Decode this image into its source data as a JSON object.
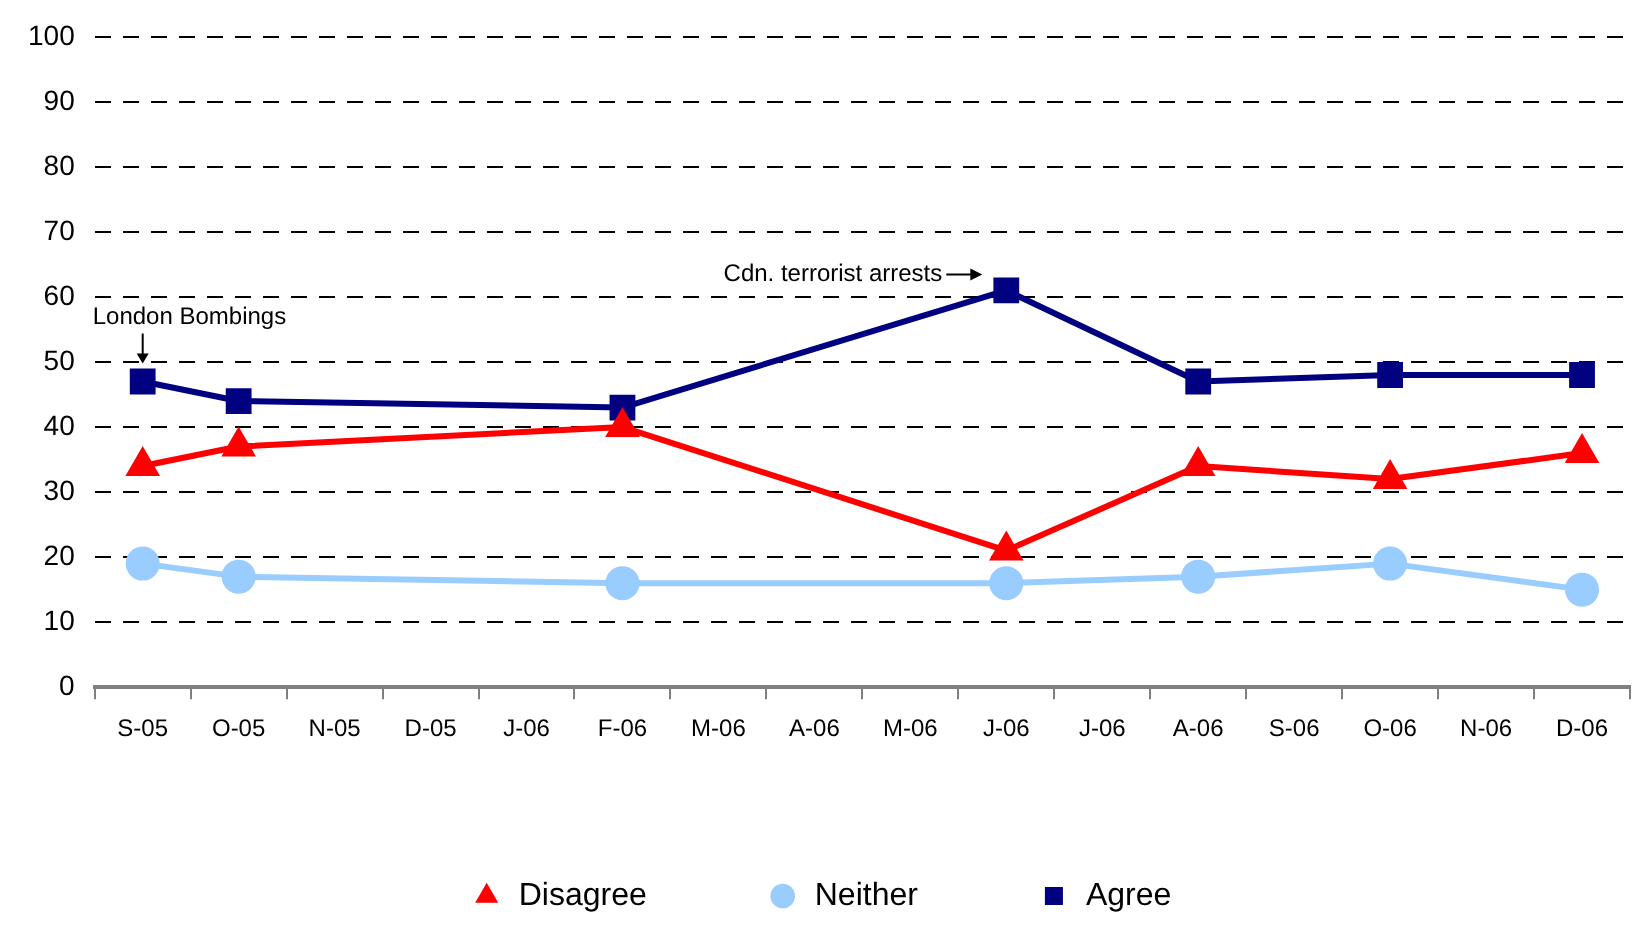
{
  "chart_data": {
    "type": "line",
    "categories": [
      "S-05",
      "O-05",
      "N-05",
      "D-05",
      "J-06",
      "F-06",
      "M-06",
      "A-06",
      "M-06",
      "J-06",
      "J-06",
      "A-06",
      "S-06",
      "O-06",
      "N-06",
      "D-06"
    ],
    "series": [
      {
        "name": "Disagree",
        "color": "#ff0000",
        "marker": "triangle",
        "values": [
          34,
          37,
          null,
          null,
          null,
          40,
          null,
          null,
          null,
          21,
          null,
          34,
          null,
          32,
          null,
          36
        ]
      },
      {
        "name": "Neither",
        "color": "#99ccff",
        "marker": "circle",
        "values": [
          19,
          17,
          null,
          null,
          null,
          16,
          null,
          null,
          null,
          16,
          null,
          17,
          null,
          19,
          null,
          15
        ]
      },
      {
        "name": "Agree",
        "color": "#000080",
        "marker": "square",
        "values": [
          47,
          44,
          null,
          null,
          null,
          43,
          null,
          null,
          null,
          61,
          null,
          47,
          null,
          48,
          null,
          48
        ]
      }
    ],
    "ylim": [
      0,
      100
    ],
    "yticks": [
      0,
      10,
      20,
      30,
      40,
      50,
      60,
      70,
      80,
      90,
      100
    ],
    "grid": "y",
    "legend": "bottom",
    "annotations": [
      {
        "text": "London Bombings",
        "x": "S-05",
        "y": 47
      },
      "Cdn. terrorist arrests"
    ]
  }
}
